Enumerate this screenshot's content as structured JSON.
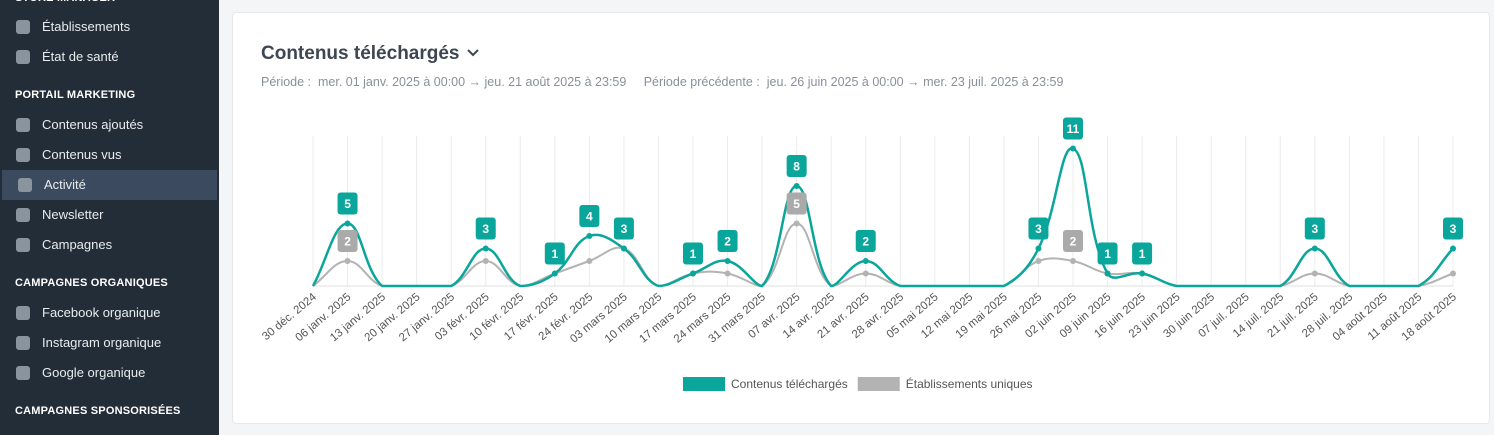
{
  "sidebar": {
    "sections": [
      {
        "title": "STORE MANAGER",
        "items": [
          "Établissements",
          "État de santé"
        ]
      },
      {
        "title": "PORTAIL MARKETING",
        "items": [
          "Contenus ajoutés",
          "Contenus vus",
          "Activité",
          "Newsletter",
          "Campagnes"
        ]
      },
      {
        "title": "CAMPAGNES ORGANIQUES",
        "items": [
          "Facebook organique",
          "Instagram organique",
          "Google organique"
        ]
      },
      {
        "title": "CAMPAGNES SPONSORISÉES",
        "items": []
      }
    ]
  },
  "header": {
    "title": "Contenus téléchargés",
    "period_label": "Période :",
    "period": "mer. 01 janv. 2025 à 00:00 → jeu. 21 août 2025 à 23:59",
    "previous_label": "Période précédente :",
    "previous": "jeu. 26 juin 2025 à 00:00 → mer. 23 juil. 2025 à 23:59"
  },
  "chart_data": {
    "type": "line",
    "categories": [
      "30 déc. 2024",
      "06 janv. 2025",
      "13 janv. 2025",
      "20 janv. 2025",
      "27 janv. 2025",
      "03 févr. 2025",
      "10 févr. 2025",
      "17 févr. 2025",
      "24 févr. 2025",
      "03 mars 2025",
      "10 mars 2025",
      "17 mars 2025",
      "24 mars 2025",
      "31 mars 2025",
      "07 avr. 2025",
      "14 avr. 2025",
      "21 avr. 2025",
      "28 avr. 2025",
      "05 mai 2025",
      "12 mai 2025",
      "19 mai 2025",
      "26 mai 2025",
      "02 juin 2025",
      "09 juin 2025",
      "16 juin 2025",
      "23 juin 2025",
      "30 juin 2025",
      "07 juil. 2025",
      "14 juil. 2025",
      "21 juil. 2025",
      "28 juil. 2025",
      "04 août 2025",
      "11 août 2025",
      "18 août 2025"
    ],
    "series": [
      {
        "name": "Contenus téléchargés",
        "color": "#0aa69b",
        "values": [
          0,
          5,
          0,
          0,
          0,
          3,
          0,
          1,
          4,
          3,
          0,
          1,
          2,
          0,
          8,
          0,
          2,
          0,
          0,
          0,
          0,
          3,
          11,
          1,
          1,
          0,
          0,
          0,
          0,
          3,
          0,
          0,
          0,
          3
        ]
      },
      {
        "name": "Établissements uniques",
        "color": "#b3b3b3",
        "values": [
          0,
          2,
          0,
          0,
          0,
          2,
          0,
          1,
          2,
          3,
          0,
          1,
          1,
          0,
          5,
          0,
          1,
          0,
          0,
          0,
          0,
          2,
          2,
          1,
          1,
          0,
          0,
          0,
          0,
          1,
          0,
          0,
          0,
          1
        ]
      }
    ],
    "ylim": [
      0,
      12
    ],
    "grid": true,
    "legend": "bottom"
  }
}
